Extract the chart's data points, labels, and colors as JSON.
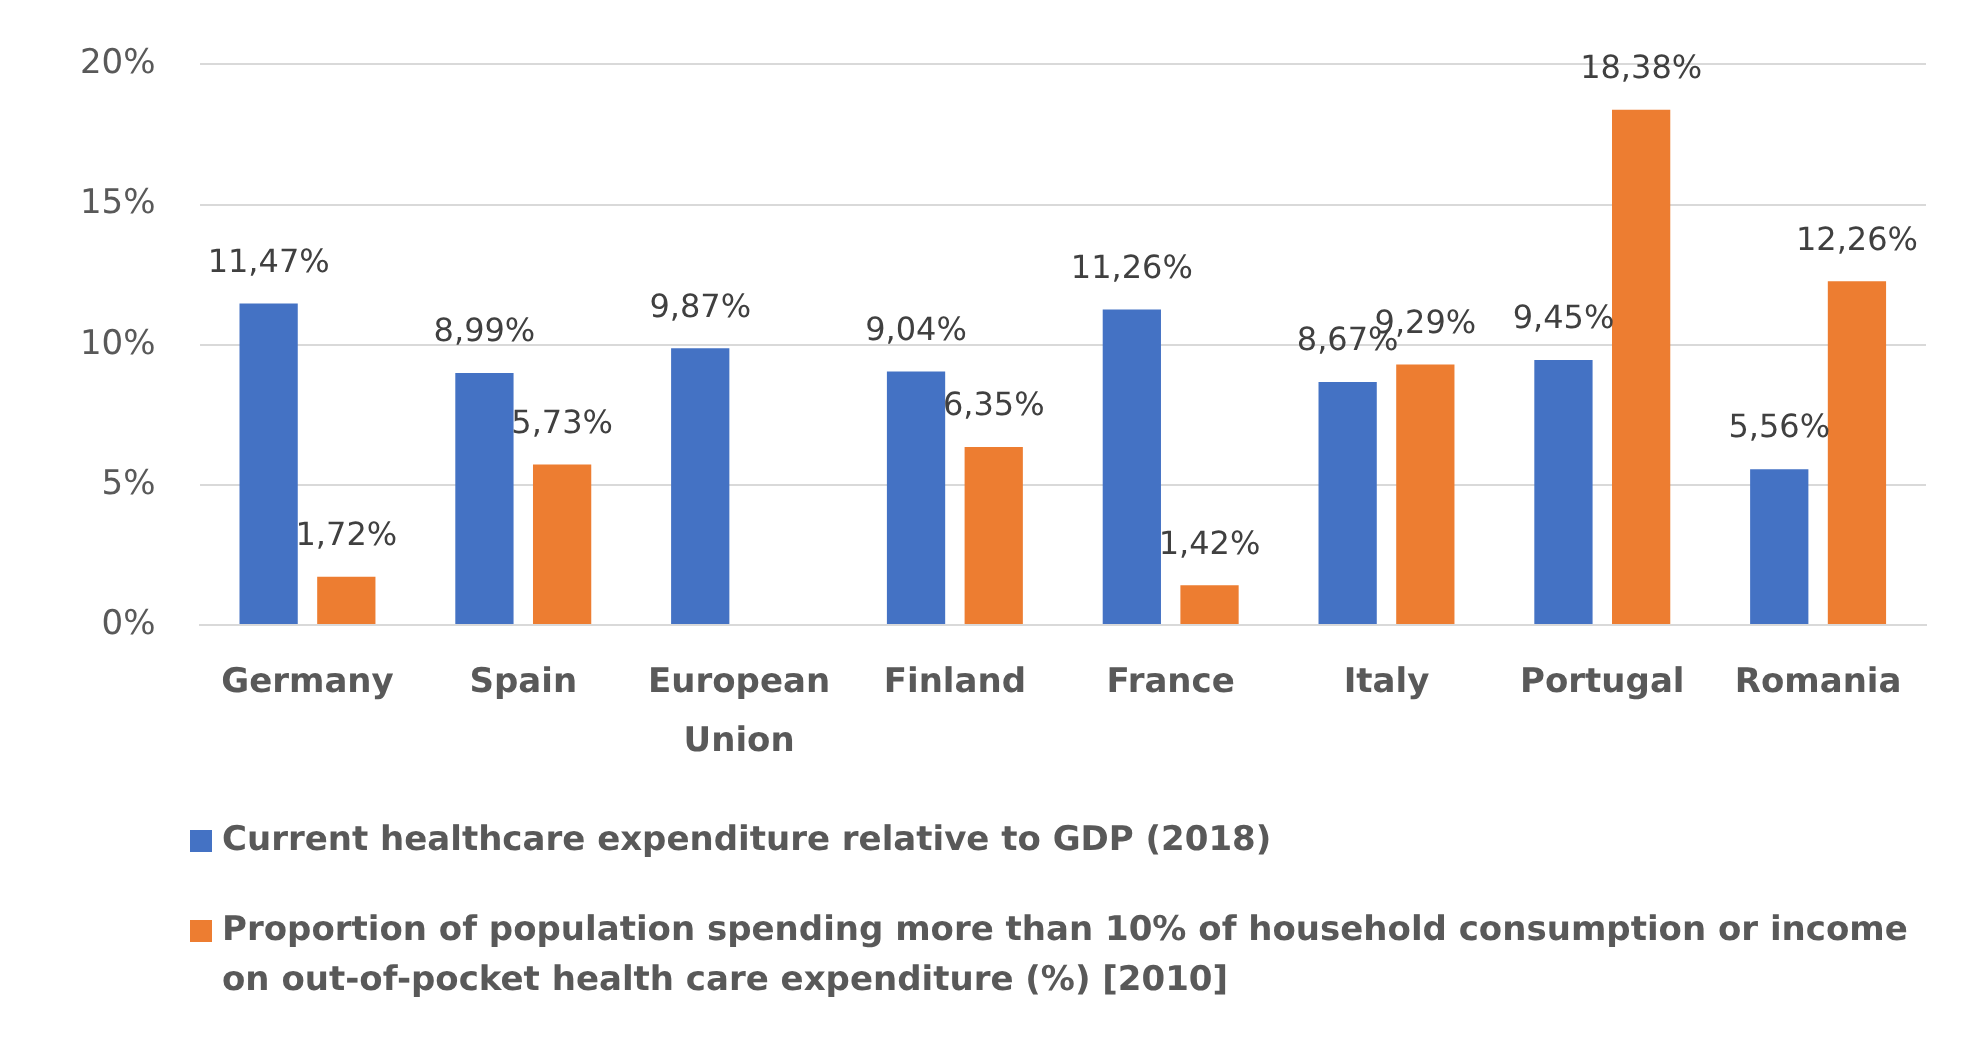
{
  "chart_data": {
    "type": "bar",
    "categories": [
      "Germany",
      "Spain",
      "European Union",
      "Finland",
      "France",
      "Italy",
      "Portugal",
      "Romania"
    ],
    "series": [
      {
        "name": "Current healthcare expenditure relative to GDP (2018)",
        "color": "#4472c4",
        "values": [
          11.47,
          8.99,
          9.87,
          9.04,
          11.26,
          8.67,
          9.45,
          5.56
        ],
        "value_labels": [
          "11,47%",
          "8,99%",
          "9,87%",
          "9,04%",
          "11,26%",
          "8,67%",
          "9,45%",
          "5,56%"
        ]
      },
      {
        "name": "Proportion of population spending more than 10% of household consumption or income on out-of-pocket health care expenditure (%) [2010]",
        "color": "#ed7d31",
        "values": [
          1.72,
          5.73,
          null,
          6.35,
          1.42,
          9.29,
          18.38,
          12.26
        ],
        "value_labels": [
          "1,72%",
          "5,73%",
          null,
          "6,35%",
          "1,42%",
          "9,29%",
          "18,38%",
          "12,26%"
        ]
      }
    ],
    "ylim": [
      0,
      20
    ],
    "yticks": [
      {
        "value": 0,
        "label": "0%"
      },
      {
        "value": 5,
        "label": "5%"
      },
      {
        "value": 10,
        "label": "10%"
      },
      {
        "value": 15,
        "label": "15%"
      },
      {
        "value": 20,
        "label": "20%"
      }
    ],
    "grid": "y",
    "legend": "bottom"
  }
}
